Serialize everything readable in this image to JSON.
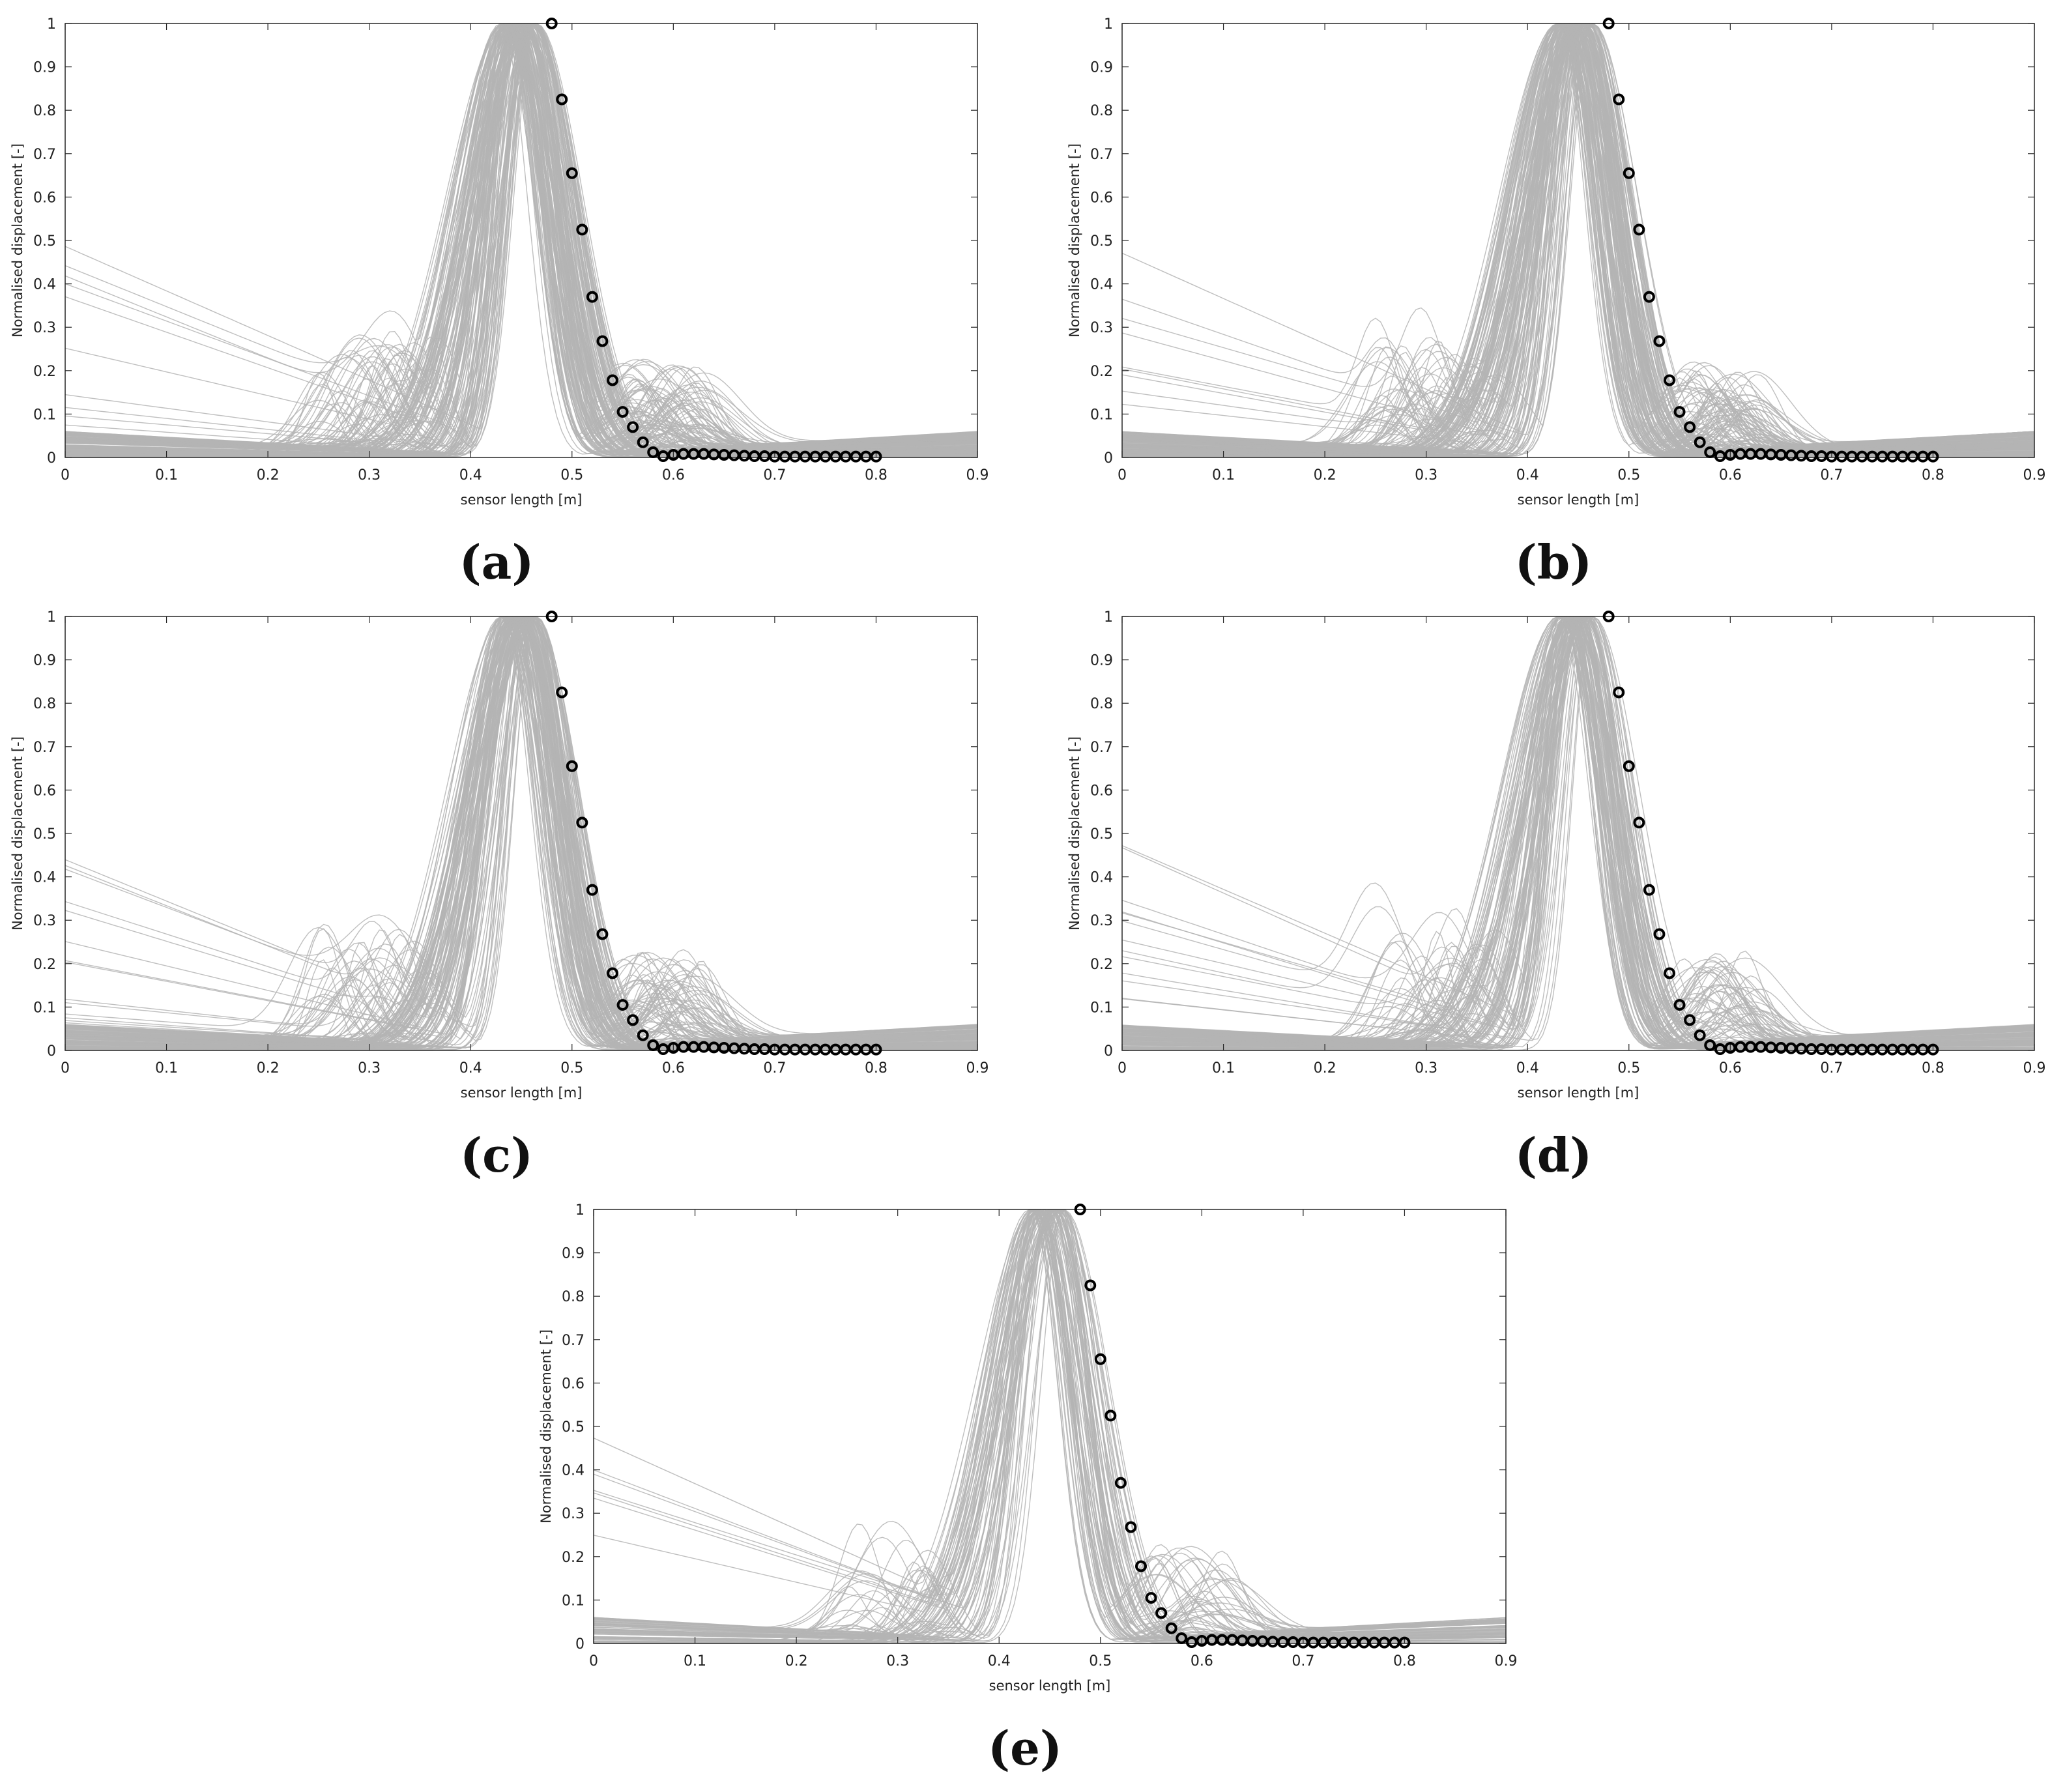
{
  "chart_data": [
    {
      "label": "(a)",
      "type": "line",
      "xlabel": "sensor length [m]",
      "ylabel": "Normalised displacement [-]",
      "xlim": [
        0,
        0.9
      ],
      "ylim": [
        0,
        1
      ],
      "xticks": [
        "0",
        "0.1",
        "0.2",
        "0.3",
        "0.4",
        "0.5",
        "0.6",
        "0.7",
        "0.8",
        "0.9"
      ],
      "yticks": [
        "0",
        "0.1",
        "0.2",
        "0.3",
        "0.4",
        "0.5",
        "0.6",
        "0.7",
        "0.8",
        "0.9",
        "1"
      ],
      "grid": false,
      "simulated_curves_color": "#b4b4b4",
      "reference_marker_color": "#000000",
      "reference": {
        "x": [
          0.48,
          0.49,
          0.5,
          0.51,
          0.52,
          0.53,
          0.54,
          0.55,
          0.56,
          0.57,
          0.58,
          0.59,
          0.6,
          0.61,
          0.62,
          0.63,
          0.64,
          0.65,
          0.66,
          0.67,
          0.68,
          0.69,
          0.7,
          0.71,
          0.72,
          0.73,
          0.74,
          0.75,
          0.76,
          0.77,
          0.78,
          0.79,
          0.8
        ],
        "y": [
          1.0,
          0.825,
          0.655,
          0.525,
          0.37,
          0.268,
          0.178,
          0.105,
          0.07,
          0.035,
          0.012,
          0.003,
          0.006,
          0.008,
          0.008,
          0.008,
          0.007,
          0.006,
          0.005,
          0.004,
          0.003,
          0.003,
          0.002,
          0.002,
          0.002,
          0.002,
          0.002,
          0.002,
          0.002,
          0.002,
          0.002,
          0.002,
          0.002
        ]
      }
    },
    {
      "label": "(b)",
      "type": "line",
      "xlabel": "sensor length [m]",
      "ylabel": "Normalised displacement [-]",
      "xlim": [
        0,
        0.9
      ],
      "ylim": [
        0,
        1
      ],
      "xticks": [
        "0",
        "0.1",
        "0.2",
        "0.3",
        "0.4",
        "0.5",
        "0.6",
        "0.7",
        "0.8",
        "0.9"
      ],
      "yticks": [
        "0",
        "0.1",
        "0.2",
        "0.3",
        "0.4",
        "0.5",
        "0.6",
        "0.7",
        "0.8",
        "0.9",
        "1"
      ],
      "grid": false,
      "simulated_curves_color": "#b4b4b4",
      "reference_marker_color": "#000000",
      "reference": {
        "x": [
          0.48,
          0.49,
          0.5,
          0.51,
          0.52,
          0.53,
          0.54,
          0.55,
          0.56,
          0.57,
          0.58,
          0.59,
          0.6,
          0.61,
          0.62,
          0.63,
          0.64,
          0.65,
          0.66,
          0.67,
          0.68,
          0.69,
          0.7,
          0.71,
          0.72,
          0.73,
          0.74,
          0.75,
          0.76,
          0.77,
          0.78,
          0.79,
          0.8
        ],
        "y": [
          1.0,
          0.825,
          0.655,
          0.525,
          0.37,
          0.268,
          0.178,
          0.105,
          0.07,
          0.035,
          0.012,
          0.003,
          0.006,
          0.008,
          0.008,
          0.008,
          0.007,
          0.006,
          0.005,
          0.004,
          0.003,
          0.003,
          0.002,
          0.002,
          0.002,
          0.002,
          0.002,
          0.002,
          0.002,
          0.002,
          0.002,
          0.002,
          0.002
        ]
      }
    },
    {
      "label": "(c)",
      "type": "line",
      "xlabel": "sensor length [m]",
      "ylabel": "Normalised displacement [-]",
      "xlim": [
        0,
        0.9
      ],
      "ylim": [
        0,
        1
      ],
      "xticks": [
        "0",
        "0.1",
        "0.2",
        "0.3",
        "0.4",
        "0.5",
        "0.6",
        "0.7",
        "0.8",
        "0.9"
      ],
      "yticks": [
        "0",
        "0.1",
        "0.2",
        "0.3",
        "0.4",
        "0.5",
        "0.6",
        "0.7",
        "0.8",
        "0.9",
        "1"
      ],
      "grid": false,
      "simulated_curves_color": "#b4b4b4",
      "reference_marker_color": "#000000",
      "reference": {
        "x": [
          0.48,
          0.49,
          0.5,
          0.51,
          0.52,
          0.53,
          0.54,
          0.55,
          0.56,
          0.57,
          0.58,
          0.59,
          0.6,
          0.61,
          0.62,
          0.63,
          0.64,
          0.65,
          0.66,
          0.67,
          0.68,
          0.69,
          0.7,
          0.71,
          0.72,
          0.73,
          0.74,
          0.75,
          0.76,
          0.77,
          0.78,
          0.79,
          0.8
        ],
        "y": [
          1.0,
          0.825,
          0.655,
          0.525,
          0.37,
          0.268,
          0.178,
          0.105,
          0.07,
          0.035,
          0.012,
          0.003,
          0.006,
          0.008,
          0.008,
          0.008,
          0.007,
          0.006,
          0.005,
          0.004,
          0.003,
          0.003,
          0.002,
          0.002,
          0.002,
          0.002,
          0.002,
          0.002,
          0.002,
          0.002,
          0.002,
          0.002,
          0.002
        ]
      }
    },
    {
      "label": "(d)",
      "type": "line",
      "xlabel": "sensor length [m]",
      "ylabel": "Normalised displacement [-]",
      "xlim": [
        0,
        0.9
      ],
      "ylim": [
        0,
        1
      ],
      "xticks": [
        "0",
        "0.1",
        "0.2",
        "0.3",
        "0.4",
        "0.5",
        "0.6",
        "0.7",
        "0.8",
        "0.9"
      ],
      "yticks": [
        "0",
        "0.1",
        "0.2",
        "0.3",
        "0.4",
        "0.5",
        "0.6",
        "0.7",
        "0.8",
        "0.9",
        "1"
      ],
      "grid": false,
      "simulated_curves_color": "#b4b4b4",
      "reference_marker_color": "#000000",
      "reference": {
        "x": [
          0.48,
          0.49,
          0.5,
          0.51,
          0.52,
          0.53,
          0.54,
          0.55,
          0.56,
          0.57,
          0.58,
          0.59,
          0.6,
          0.61,
          0.62,
          0.63,
          0.64,
          0.65,
          0.66,
          0.67,
          0.68,
          0.69,
          0.7,
          0.71,
          0.72,
          0.73,
          0.74,
          0.75,
          0.76,
          0.77,
          0.78,
          0.79,
          0.8
        ],
        "y": [
          1.0,
          0.825,
          0.655,
          0.525,
          0.37,
          0.268,
          0.178,
          0.105,
          0.07,
          0.035,
          0.012,
          0.003,
          0.006,
          0.008,
          0.008,
          0.008,
          0.007,
          0.006,
          0.005,
          0.004,
          0.003,
          0.003,
          0.002,
          0.002,
          0.002,
          0.002,
          0.002,
          0.002,
          0.002,
          0.002,
          0.002,
          0.002,
          0.002
        ]
      }
    },
    {
      "label": "(e)",
      "type": "line",
      "xlabel": "sensor length [m]",
      "ylabel": "Normalised displacement [-]",
      "xlim": [
        0,
        0.9
      ],
      "ylim": [
        0,
        1
      ],
      "xticks": [
        "0",
        "0.1",
        "0.2",
        "0.3",
        "0.4",
        "0.5",
        "0.6",
        "0.7",
        "0.8",
        "0.9"
      ],
      "yticks": [
        "0",
        "0.1",
        "0.2",
        "0.3",
        "0.4",
        "0.5",
        "0.6",
        "0.7",
        "0.8",
        "0.9",
        "1"
      ],
      "grid": false,
      "simulated_curves_color": "#b4b4b4",
      "reference_marker_color": "#000000",
      "reference": {
        "x": [
          0.48,
          0.49,
          0.5,
          0.51,
          0.52,
          0.53,
          0.54,
          0.55,
          0.56,
          0.57,
          0.58,
          0.59,
          0.6,
          0.61,
          0.62,
          0.63,
          0.64,
          0.65,
          0.66,
          0.67,
          0.68,
          0.69,
          0.7,
          0.71,
          0.72,
          0.73,
          0.74,
          0.75,
          0.76,
          0.77,
          0.78,
          0.79,
          0.8
        ],
        "y": [
          1.0,
          0.825,
          0.655,
          0.525,
          0.37,
          0.268,
          0.178,
          0.105,
          0.07,
          0.035,
          0.012,
          0.003,
          0.006,
          0.008,
          0.008,
          0.008,
          0.007,
          0.006,
          0.005,
          0.004,
          0.003,
          0.003,
          0.002,
          0.002,
          0.002,
          0.002,
          0.002,
          0.002,
          0.002,
          0.002,
          0.002,
          0.002,
          0.002
        ]
      }
    }
  ]
}
